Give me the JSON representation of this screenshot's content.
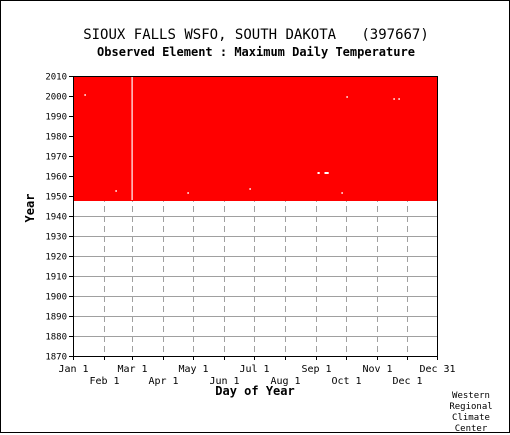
{
  "header": {
    "title": "SIOUX FALLS WSFO, SOUTH DAKOTA   (397667)",
    "subtitle": "Observed Element : Maximum Daily Temperature"
  },
  "credit": [
    "Western",
    "Regional",
    "Climate",
    "Center"
  ],
  "colors": {
    "data_fill": "#ff0000",
    "gap": "#ffffff",
    "grid": "#a0a0a0",
    "axis": "#000000"
  },
  "chart_data": {
    "type": "heatmap",
    "title": "SIOUX FALLS WSFO, SOUTH DAKOTA   (397667)",
    "subtitle": "Observed Element : Maximum Daily Temperature",
    "xlabel": "Day of Year",
    "ylabel": "Year",
    "xlim": [
      1,
      365
    ],
    "ylim": [
      1870,
      2010
    ],
    "x_ticks": [
      {
        "day": 1,
        "label": "Jan 1",
        "row": 0
      },
      {
        "day": 32,
        "label": "Feb 1",
        "row": 1
      },
      {
        "day": 60,
        "label": "Mar 1",
        "row": 0
      },
      {
        "day": 91,
        "label": "Apr 1",
        "row": 1
      },
      {
        "day": 121,
        "label": "May 1",
        "row": 0
      },
      {
        "day": 152,
        "label": "Jun 1",
        "row": 1
      },
      {
        "day": 182,
        "label": "Jul 1",
        "row": 0
      },
      {
        "day": 213,
        "label": "Aug 1",
        "row": 1
      },
      {
        "day": 244,
        "label": "Sep 1",
        "row": 0
      },
      {
        "day": 274,
        "label": "Oct 1",
        "row": 1
      },
      {
        "day": 305,
        "label": "Nov 1",
        "row": 0
      },
      {
        "day": 335,
        "label": "Dec 1",
        "row": 1
      },
      {
        "day": 365,
        "label": "Dec 31",
        "row": 0
      }
    ],
    "y_ticks": [
      "2010",
      "2000",
      "1990",
      "1980",
      "1970",
      "1960",
      "1950",
      "1940",
      "1930",
      "1920",
      "1910",
      "1900",
      "1890",
      "1880",
      "1870"
    ],
    "observed_period": {
      "start_year": 1947.5,
      "end_year": 2010,
      "start_day": 1,
      "end_day": 365
    },
    "missing": [
      {
        "day": 60,
        "year_start": 1948,
        "year_end": 2010
      },
      {
        "day": 13,
        "year_start": 2000,
        "year_end": 2001
      },
      {
        "day": 44,
        "year_start": 1952,
        "year_end": 1953
      },
      {
        "day": 116,
        "year_start": 1951,
        "year_end": 1952
      },
      {
        "day": 178,
        "year_start": 1953,
        "year_end": 1954
      },
      {
        "day": 246,
        "year_start": 1961,
        "year_end": 1962
      },
      {
        "day": 247,
        "year_start": 1961,
        "year_end": 1962
      },
      {
        "day": 253,
        "year_start": 1961,
        "year_end": 1962
      },
      {
        "day": 254,
        "year_start": 1961,
        "year_end": 1962
      },
      {
        "day": 255,
        "year_start": 1961,
        "year_end": 1962
      },
      {
        "day": 256,
        "year_start": 1961,
        "year_end": 1962
      },
      {
        "day": 270,
        "year_start": 1951,
        "year_end": 1952
      },
      {
        "day": 275,
        "year_start": 1999,
        "year_end": 2000
      },
      {
        "day": 322,
        "year_start": 1998,
        "year_end": 1999
      },
      {
        "day": 327,
        "year_start": 1998,
        "year_end": 1999
      }
    ],
    "grid": true,
    "legend": "none"
  }
}
